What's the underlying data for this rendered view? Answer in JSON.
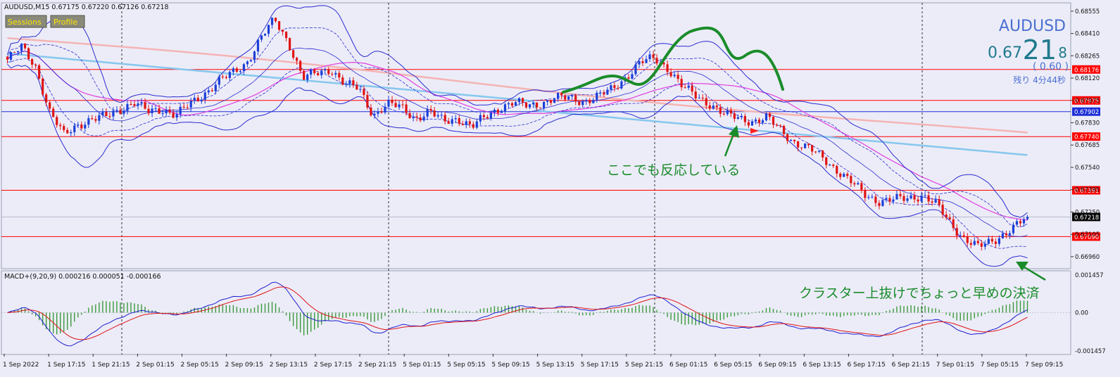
{
  "header": {
    "symbol_line": "AUDUSD,M15  0.67175 0.67220 0.67126 0.67218",
    "macd_line": "MACD+(9,20,9) 0.000216 0.000051 -0.000166"
  },
  "buttons": {
    "sessions": "Sessions",
    "profile": "Profile"
  },
  "quote": {
    "symbol": "AUDUSD",
    "price_main": "0.67",
    "price_big": "21",
    "price_small": "8",
    "spread": "( 0.60 )",
    "remaining": "残り 4分44秒"
  },
  "annotations": {
    "reaction": "ここでも反応している",
    "exit": "クラスター上抜けでちょっと早めの決済"
  },
  "colors": {
    "background": "#ececf8",
    "bull": "#1c3fd8",
    "bear": "#e01414",
    "level": "#ff0000",
    "annotation": "#1a8c2a",
    "quote": "#4a6fd1",
    "ma_blue": "#87c7ee",
    "ma_pink": "#f4b4b4",
    "ma_magenta": "#e040e0"
  },
  "chart_data": {
    "type": "candlestick",
    "symbol": "AUDUSD",
    "timeframe": "M15",
    "ylim": [
      0.669,
      0.686
    ],
    "last_price": 0.67218,
    "y_ticks": [
      0.68555,
      0.6841,
      0.68265,
      0.6812,
      0.67975,
      0.6783,
      0.67685,
      0.6754,
      0.67395,
      0.6725,
      0.67105,
      0.6696
    ],
    "y_tick_labels": [
      "0.68555",
      "0.68410",
      "0.68265",
      "0.68120",
      "0.67975",
      "0.67830",
      "0.67685",
      "0.67540",
      "0.67395",
      "0.67250",
      "0.67105",
      "0.66960"
    ],
    "horizontal_levels": [
      {
        "value": 0.68176,
        "label": "0.68176",
        "color": "#ff0000"
      },
      {
        "value": 0.67975,
        "label": "0.67975",
        "color": "#ff0000"
      },
      {
        "value": 0.67902,
        "label": "0.67902",
        "color": "#1c2fd8"
      },
      {
        "value": 0.6774,
        "label": "0.67740",
        "color": "#ff0000"
      },
      {
        "value": 0.67391,
        "label": "0.67391",
        "color": "#ff0000"
      },
      {
        "value": 0.6709,
        "label": "0.67090",
        "color": "#ff0000"
      }
    ],
    "last_price_label": "0.67218",
    "x_tick_labels": [
      "1 Sep 2022",
      "1 Sep 17:15",
      "1 Sep 21:15",
      "2 Sep 01:15",
      "2 Sep 05:15",
      "2 Sep 09:15",
      "2 Sep 13:15",
      "2 Sep 17:15",
      "2 Sep 21:15",
      "5 Sep 01:15",
      "5 Sep 05:15",
      "5 Sep 09:15",
      "5 Sep 13:15",
      "5 Sep 17:15",
      "5 Sep 21:15",
      "6 Sep 01:15",
      "6 Sep 05:15",
      "6 Sep 09:15",
      "6 Sep 13:15",
      "6 Sep 17:15",
      "6 Sep 21:15",
      "7 Sep 01:15",
      "7 Sep 05:15",
      "7 Sep 09:15"
    ],
    "day_separators": [
      "2 Sep 00:00",
      "5 Sep 00:00",
      "6 Sep 00:00",
      "7 Sep 00:00"
    ],
    "price_path": [
      [
        0,
        0.6824
      ],
      [
        2,
        0.6832
      ],
      [
        4,
        0.682
      ],
      [
        6,
        0.679
      ],
      [
        8,
        0.6775
      ],
      [
        10,
        0.6782
      ],
      [
        12,
        0.6785
      ],
      [
        14,
        0.6787
      ],
      [
        16,
        0.6792
      ],
      [
        18,
        0.6796
      ],
      [
        20,
        0.679
      ],
      [
        22,
        0.6792
      ],
      [
        24,
        0.6788
      ],
      [
        26,
        0.6795
      ],
      [
        28,
        0.6802
      ],
      [
        30,
        0.681
      ],
      [
        32,
        0.6815
      ],
      [
        34,
        0.6822
      ],
      [
        36,
        0.6838
      ],
      [
        38,
        0.685
      ],
      [
        40,
        0.6835
      ],
      [
        42,
        0.6812
      ],
      [
        44,
        0.6815
      ],
      [
        46,
        0.6818
      ],
      [
        48,
        0.6808
      ],
      [
        50,
        0.6805
      ],
      [
        52,
        0.6788
      ],
      [
        54,
        0.6795
      ],
      [
        56,
        0.6793
      ],
      [
        58,
        0.6786
      ],
      [
        60,
        0.679
      ],
      [
        62,
        0.6784
      ],
      [
        64,
        0.6786
      ],
      [
        66,
        0.678
      ],
      [
        68,
        0.6787
      ],
      [
        70,
        0.6793
      ],
      [
        72,
        0.6796
      ],
      [
        74,
        0.6794
      ],
      [
        76,
        0.6796
      ],
      [
        78,
        0.6799
      ],
      [
        80,
        0.6799
      ],
      [
        82,
        0.6797
      ],
      [
        84,
        0.68
      ],
      [
        86,
        0.6805
      ],
      [
        88,
        0.6813
      ],
      [
        90,
        0.6822
      ],
      [
        92,
        0.6825
      ],
      [
        94,
        0.6818
      ],
      [
        96,
        0.6806
      ],
      [
        98,
        0.68
      ],
      [
        100,
        0.6795
      ],
      [
        102,
        0.6788
      ],
      [
        104,
        0.6786
      ],
      [
        106,
        0.6784
      ],
      [
        108,
        0.6786
      ],
      [
        110,
        0.6778
      ],
      [
        112,
        0.677
      ],
      [
        114,
        0.6766
      ],
      [
        116,
        0.676
      ],
      [
        118,
        0.6752
      ],
      [
        120,
        0.6744
      ],
      [
        122,
        0.6736
      ],
      [
        124,
        0.6732
      ],
      [
        126,
        0.6733
      ],
      [
        128,
        0.6734
      ],
      [
        130,
        0.6736
      ],
      [
        132,
        0.673
      ],
      [
        134,
        0.6718
      ],
      [
        136,
        0.6708
      ],
      [
        138,
        0.6702
      ],
      [
        140,
        0.6706
      ],
      [
        142,
        0.6712
      ],
      [
        144,
        0.6718
      ],
      [
        145,
        0.67218
      ]
    ],
    "macd": {
      "params": "9,20,9",
      "main": 0.000216,
      "signal": 5.1e-05,
      "histogram": -0.000166,
      "ylim": [
        -0.001457,
        0.001457
      ],
      "y_tick_labels": [
        "0.001457",
        "0.00",
        "-0.001457"
      ]
    }
  }
}
